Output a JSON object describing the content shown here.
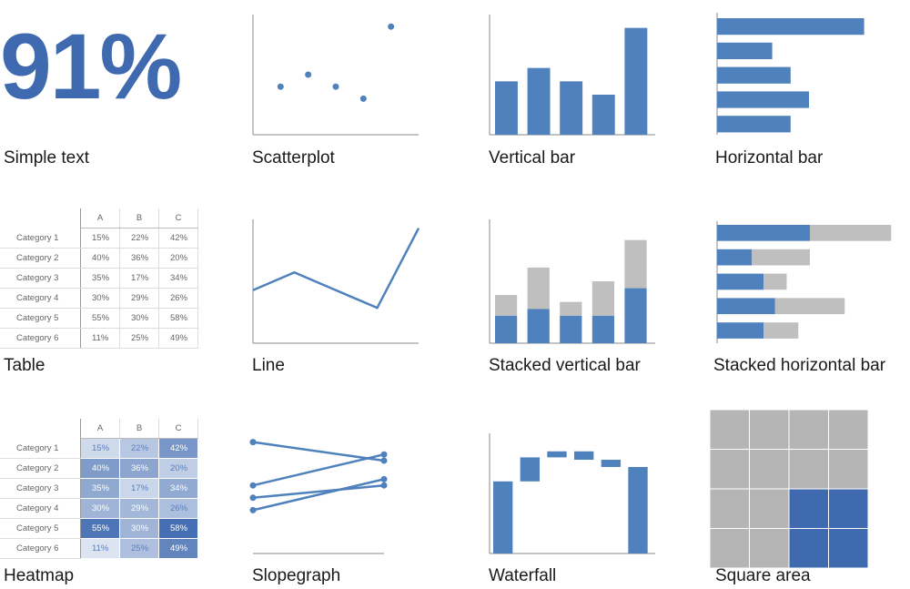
{
  "colors": {
    "blue": "#4f81bd",
    "dark_blue": "#3f6ab0",
    "gray": "#bfbfbf",
    "axis": "#888888"
  },
  "simple_text": {
    "value": "91%",
    "caption": "Simple text"
  },
  "captions": {
    "scatter": "Scatterplot",
    "vbar": "Vertical bar",
    "hbar": "Horizontal bar",
    "table": "Table",
    "line": "Line",
    "svbar": "Stacked vertical bar",
    "shbar": "Stacked horizontal bar",
    "heatmap": "Heatmap",
    "slope": "Slopegraph",
    "waterfall": "Waterfall",
    "square": "Square area"
  },
  "table": {
    "columns": [
      "A",
      "B",
      "C"
    ],
    "rows": [
      {
        "label": "Category 1",
        "values": [
          "15%",
          "22%",
          "42%"
        ]
      },
      {
        "label": "Category 2",
        "values": [
          "40%",
          "36%",
          "20%"
        ]
      },
      {
        "label": "Category 3",
        "values": [
          "35%",
          "17%",
          "34%"
        ]
      },
      {
        "label": "Category 4",
        "values": [
          "30%",
          "29%",
          "26%"
        ]
      },
      {
        "label": "Category 5",
        "values": [
          "55%",
          "30%",
          "58%"
        ]
      },
      {
        "label": "Category 6",
        "values": [
          "11%",
          "25%",
          "49%"
        ]
      }
    ]
  },
  "heatmap": {
    "columns": [
      "A",
      "B",
      "C"
    ],
    "rows": [
      {
        "label": "Category 1",
        "values": [
          "15%",
          "22%",
          "42%"
        ]
      },
      {
        "label": "Category 2",
        "values": [
          "40%",
          "36%",
          "20%"
        ]
      },
      {
        "label": "Category 3",
        "values": [
          "35%",
          "17%",
          "34%"
        ]
      },
      {
        "label": "Category 4",
        "values": [
          "30%",
          "29%",
          "26%"
        ]
      },
      {
        "label": "Category 5",
        "values": [
          "55%",
          "30%",
          "58%"
        ]
      },
      {
        "label": "Category 6",
        "values": [
          "11%",
          "25%",
          "49%"
        ]
      }
    ]
  },
  "chart_data": [
    {
      "id": "scatter",
      "type": "scatter",
      "x": [
        1,
        2,
        3,
        4,
        5
      ],
      "y": [
        4,
        5,
        4,
        3,
        9
      ],
      "xlim": [
        0,
        6
      ],
      "ylim": [
        0,
        10
      ]
    },
    {
      "id": "vbar",
      "type": "bar",
      "values": [
        4,
        5,
        4,
        3,
        8
      ],
      "ylim": [
        0,
        9
      ]
    },
    {
      "id": "hbar",
      "type": "bar",
      "orientation": "horizontal",
      "values": [
        8,
        3,
        4,
        5,
        4
      ],
      "xlim": [
        0,
        10
      ]
    },
    {
      "id": "line",
      "type": "line",
      "x": [
        0,
        1,
        2,
        3,
        4
      ],
      "y": [
        3,
        4,
        3,
        2,
        6.5
      ],
      "ylim": [
        0,
        7
      ]
    },
    {
      "id": "svbar",
      "type": "bar",
      "stacked": true,
      "series": [
        {
          "values": [
            2,
            2.5,
            2,
            2,
            4
          ]
        },
        {
          "values": [
            1.5,
            3,
            1,
            2.5,
            3.5
          ]
        }
      ],
      "ylim": [
        0,
        9
      ]
    },
    {
      "id": "shbar",
      "type": "bar",
      "orientation": "horizontal",
      "stacked": true,
      "series": [
        {
          "values": [
            4,
            1.5,
            2,
            2.5,
            2
          ]
        },
        {
          "values": [
            3.5,
            2.5,
            1,
            3,
            1.5
          ]
        }
      ],
      "xlim": [
        0,
        8
      ]
    },
    {
      "id": "slope",
      "type": "line",
      "kind": "slopegraph",
      "series": [
        {
          "values": [
            9,
            7.5
          ]
        },
        {
          "values": [
            5.5,
            8
          ]
        },
        {
          "values": [
            4.5,
            5.5
          ]
        },
        {
          "values": [
            3.5,
            6
          ]
        }
      ],
      "ylim": [
        0,
        10
      ]
    },
    {
      "id": "waterfall",
      "type": "bar",
      "kind": "waterfall",
      "bars": [
        {
          "start": 0,
          "end": 6
        },
        {
          "start": 6,
          "end": 8
        },
        {
          "start": 8,
          "end": 8.5
        },
        {
          "start": 8.5,
          "end": 7.8
        },
        {
          "start": 7.8,
          "end": 7.2
        },
        {
          "start": 0,
          "end": 7.2
        }
      ],
      "ylim": [
        0,
        10
      ]
    },
    {
      "id": "square",
      "type": "heatmap",
      "kind": "square-area",
      "grid": 4,
      "highlighted": 4
    }
  ]
}
